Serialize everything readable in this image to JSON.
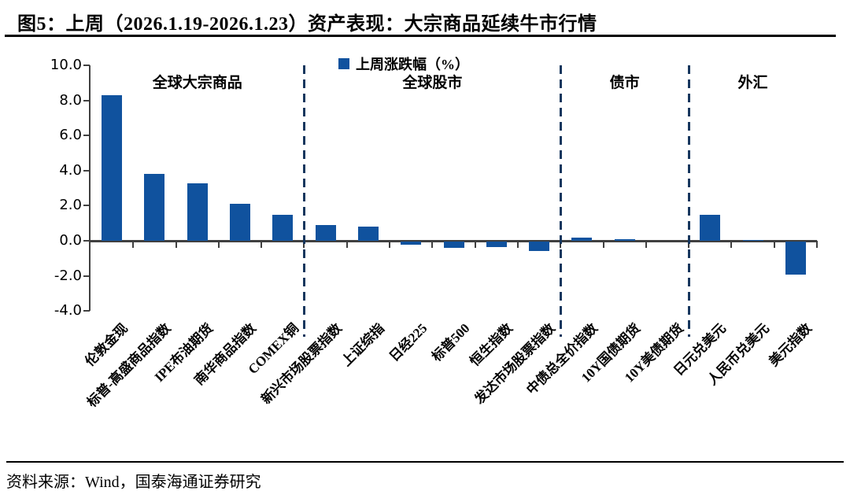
{
  "figure": {
    "title": "图5：上周（2026.1.19-2026.1.23）资产表现：大宗商品延续牛市行情",
    "source": "资料来源：Wind，国泰海通证券研究"
  },
  "chart_data": {
    "type": "bar",
    "title": "上周（2026.1.19-2026.1.23）资产表现",
    "legend_label": "上周涨跌幅（%）",
    "categories": [
      "伦敦金现",
      "标普-高盛商品指数",
      "IPE布油期货",
      "南华商品指数",
      "COMEX铜",
      "新兴市场股票指数",
      "上证综指",
      "日经225",
      "标普500",
      "恒生指数",
      "发达市场股票指数",
      "中债总全价指数",
      "10Y国债期货",
      "10Y美债期货",
      "日元兑美元",
      "人民币兑美元",
      "美元指数"
    ],
    "values": [
      8.3,
      3.8,
      3.3,
      2.1,
      1.5,
      0.9,
      0.8,
      -0.2,
      -0.35,
      -0.3,
      -0.55,
      0.2,
      0.1,
      0.0,
      1.5,
      0.05,
      -1.9
    ],
    "ylabel": "",
    "xlabel": "",
    "ylim": [
      -4.0,
      10.0
    ],
    "ytick_labels": [
      "10.0",
      "8.0",
      "6.0",
      "4.0",
      "2.0",
      "0.0",
      "-2.0",
      "-4.0"
    ],
    "ytick_values": [
      10,
      8,
      6,
      4,
      2,
      0,
      -2,
      -4
    ],
    "grid": false,
    "legend_position": "top-center",
    "sections": [
      {
        "label": "全球大宗商品",
        "start": 0,
        "end": 4
      },
      {
        "label": "全球股市",
        "start": 5,
        "end": 10
      },
      {
        "label": "债市",
        "start": 11,
        "end": 13
      },
      {
        "label": "外汇",
        "start": 14,
        "end": 16
      }
    ],
    "colors": {
      "bar": "#10529e",
      "separator": "#17375e",
      "axis": "#404040"
    }
  }
}
